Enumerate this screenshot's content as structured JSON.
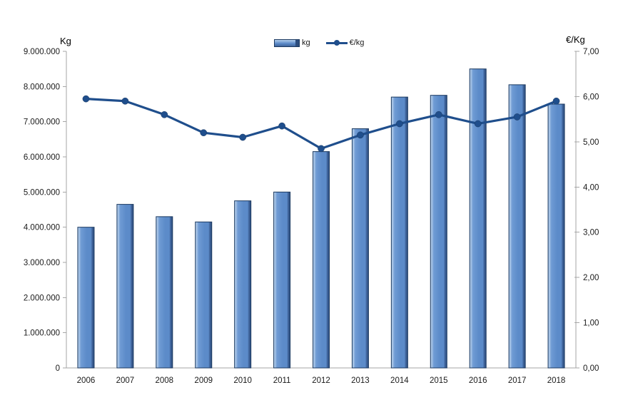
{
  "chart_data": {
    "type": "combo-bar-line",
    "title": "",
    "categories": [
      "2006",
      "2007",
      "2008",
      "2009",
      "2010",
      "2011",
      "2012",
      "2013",
      "2014",
      "2015",
      "2016",
      "2017",
      "2018"
    ],
    "series": [
      {
        "name": "kg",
        "type": "bar",
        "axis": "left",
        "values": [
          4000000,
          4650000,
          4300000,
          4150000,
          4750000,
          5000000,
          6150000,
          6800000,
          7700000,
          7750000,
          8500000,
          8050000,
          7500000
        ]
      },
      {
        "name": "€/kg",
        "type": "line",
        "axis": "right",
        "values": [
          5.95,
          5.9,
          5.6,
          5.2,
          5.1,
          5.35,
          4.85,
          5.15,
          5.4,
          5.6,
          5.4,
          5.55,
          5.9
        ]
      }
    ],
    "left_axis": {
      "title": "Kg",
      "min": 0,
      "max": 9000000,
      "tick_step": 1000000,
      "tick_labels": [
        "0",
        "1.000.000",
        "2.000.000",
        "3.000.000",
        "4.000.000",
        "5.000.000",
        "6.000.000",
        "7.000.000",
        "8.000.000",
        "9.000.000"
      ]
    },
    "right_axis": {
      "title": "€/Kg",
      "min": 0,
      "max": 7,
      "tick_step": 1,
      "tick_labels": [
        "0,00",
        "1,00",
        "2,00",
        "3,00",
        "4,00",
        "5,00",
        "6,00",
        "7,00"
      ]
    },
    "legend": {
      "position": "top-center",
      "entries": [
        "kg",
        "€/kg"
      ]
    },
    "grid": false
  },
  "colors": {
    "bar_edge_light": "#86abd8",
    "bar_highlight": "#b3cdea",
    "bar_fill_light": "#6f9bd4",
    "bar_fill": "#5c8bc9",
    "bar_shade": "#3f639a",
    "bar_dark": "#2c4d7e",
    "bar_border": "#1c3a61",
    "line": "#1f4e8c",
    "axis": "#a6a6a6",
    "tick_text": "#1a1a1a",
    "background": "#ffffff"
  }
}
